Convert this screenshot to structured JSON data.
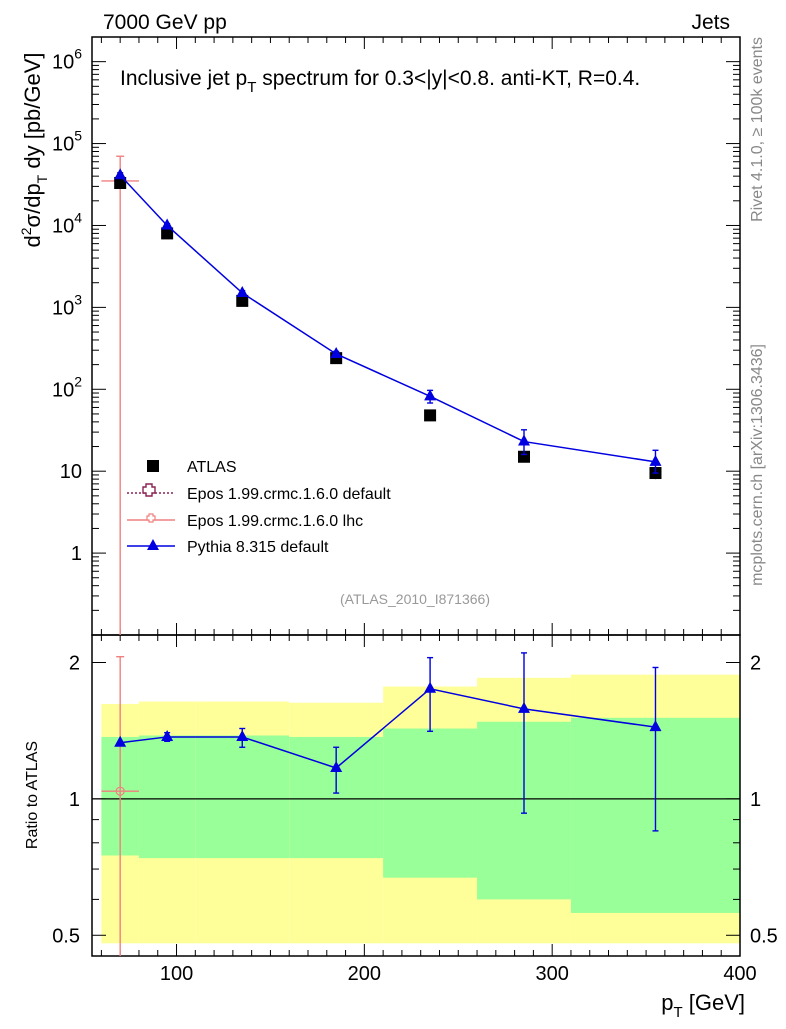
{
  "header": {
    "left": "7000 GeV pp",
    "right": "Jets",
    "side_rivet": "Rivet 4.1.0, ≥ 100k events",
    "side_mcplots": "mcplots.cern.ch [arXiv:1306.3436]"
  },
  "colors": {
    "atlas": "#000000",
    "epos_default": "#8b2252",
    "epos_lhc": "#f08080",
    "pythia": "#0000e0",
    "band_inner": "#99ff99",
    "band_outer": "#ffff99"
  },
  "chart_data": [
    {
      "type": "line",
      "title": "Inclusive jet p_T spectrum for 0.3<|y|<0.8.  anti-KT, R=0.4.",
      "title_parts": {
        "pre": "Inclusive jet p",
        "sub": "T",
        "post": " spectrum for 0.3<|y|<0.8.  anti-KT, R=0.4."
      },
      "ylabel": "d²σ/dp_T dy [pb/GeV]",
      "ylabel_parts": {
        "d": "d",
        "sup2": "2",
        "sigma": "σ/dp",
        "subT": "T",
        "rest": " dy [pb/GeV]"
      },
      "xlabel": "p_T [GeV]",
      "yscale": "log",
      "ylim": [
        0.1,
        2000000
      ],
      "xlim": [
        55,
        400
      ],
      "y_ticks": [
        {
          "v": 1,
          "label": "1"
        },
        {
          "v": 10,
          "label": "10"
        },
        {
          "v": 100,
          "base": "10",
          "exp": "2"
        },
        {
          "v": 1000,
          "base": "10",
          "exp": "3"
        },
        {
          "v": 10000,
          "base": "10",
          "exp": "4"
        },
        {
          "v": 100000,
          "base": "10",
          "exp": "5"
        },
        {
          "v": 1000000,
          "base": "10",
          "exp": "6"
        }
      ],
      "watermark": "(ATLAS_2010_I871366)",
      "legend_position": "lower-left",
      "legend": [
        {
          "label": "ATLAS",
          "marker": "square"
        },
        {
          "label": "Epos 1.99.crmc.1.6.0 default",
          "marker": "open-cross"
        },
        {
          "label": "Epos 1.99.crmc.1.6.0 lhc",
          "marker": "open-cross"
        },
        {
          "label": "Pythia 8.315 default",
          "marker": "triangle"
        }
      ],
      "series": [
        {
          "name": "ATLAS",
          "x": [
            70,
            95,
            135,
            185,
            235,
            285,
            355
          ],
          "y": [
            33000,
            8000,
            1200,
            240,
            48,
            15,
            9.5
          ],
          "yerr_low": [
            3000,
            700,
            100,
            20,
            5,
            2,
            1.5
          ],
          "yerr_high": [
            3000,
            700,
            100,
            20,
            5,
            2,
            1.5
          ]
        },
        {
          "name": "Epos 1.99.crmc.1.6.0 lhc",
          "x": [
            70
          ],
          "y": [
            35000
          ],
          "xerr": [
            [
              60,
              80
            ]
          ],
          "ylow": [
            0.05
          ],
          "yhigh": [
            70000
          ]
        },
        {
          "name": "Pythia 8.315 default",
          "x": [
            70,
            95,
            135,
            185,
            235,
            285,
            355
          ],
          "y": [
            41000,
            10000,
            1500,
            270,
            82,
            23,
            13
          ],
          "ylow": [
            38000,
            9500,
            1400,
            250,
            68,
            16,
            9.5
          ],
          "yhigh": [
            44000,
            10500,
            1600,
            290,
            97,
            32,
            18
          ]
        }
      ]
    },
    {
      "type": "line",
      "title": "",
      "ylabel": "Ratio to ATLAS",
      "xlabel": "p_T [GeV]",
      "yscale": "log",
      "ylim": [
        0.45,
        2.3
      ],
      "xlim": [
        55,
        400
      ],
      "y_ticks": [
        {
          "v": 0.5,
          "label": "0.5"
        },
        {
          "v": 1,
          "label": "1"
        },
        {
          "v": 2,
          "label": "2"
        }
      ],
      "x_ticks": [
        {
          "v": 100,
          "label": "100"
        },
        {
          "v": 200,
          "label": "200"
        },
        {
          "v": 300,
          "label": "300"
        },
        {
          "v": 400,
          "label": "400"
        }
      ],
      "bands": [
        {
          "x0": 60,
          "x1": 80,
          "inner": [
            0.75,
            1.37
          ],
          "outer": [
            0.48,
            1.62
          ]
        },
        {
          "x0": 80,
          "x1": 110,
          "inner": [
            0.74,
            1.38
          ],
          "outer": [
            0.48,
            1.64
          ]
        },
        {
          "x0": 110,
          "x1": 160,
          "inner": [
            0.74,
            1.38
          ],
          "outer": [
            0.48,
            1.64
          ]
        },
        {
          "x0": 160,
          "x1": 210,
          "inner": [
            0.74,
            1.37
          ],
          "outer": [
            0.48,
            1.63
          ]
        },
        {
          "x0": 210,
          "x1": 260,
          "inner": [
            0.67,
            1.43
          ],
          "outer": [
            0.48,
            1.77
          ]
        },
        {
          "x0": 260,
          "x1": 310,
          "inner": [
            0.6,
            1.48
          ],
          "outer": [
            0.48,
            1.85
          ]
        },
        {
          "x0": 310,
          "x1": 400,
          "inner": [
            0.56,
            1.51
          ],
          "outer": [
            0.48,
            1.88
          ]
        }
      ],
      "series": [
        {
          "name": "Epos 1.99.crmc.1.6.0 lhc",
          "x": [
            70
          ],
          "y": [
            1.04
          ],
          "xerr": [
            [
              60,
              80
            ]
          ],
          "ylow": [
            0.4
          ],
          "yhigh": [
            2.06
          ]
        },
        {
          "name": "Pythia 8.315 default",
          "x": [
            70,
            95,
            135,
            185,
            235,
            285,
            355
          ],
          "y": [
            1.33,
            1.37,
            1.37,
            1.17,
            1.75,
            1.58,
            1.44
          ],
          "ylow": [
            1.33,
            1.34,
            1.3,
            1.03,
            1.41,
            0.93,
            0.85
          ],
          "yhigh": [
            1.33,
            1.4,
            1.43,
            1.3,
            2.05,
            2.1,
            1.95
          ]
        }
      ]
    }
  ]
}
